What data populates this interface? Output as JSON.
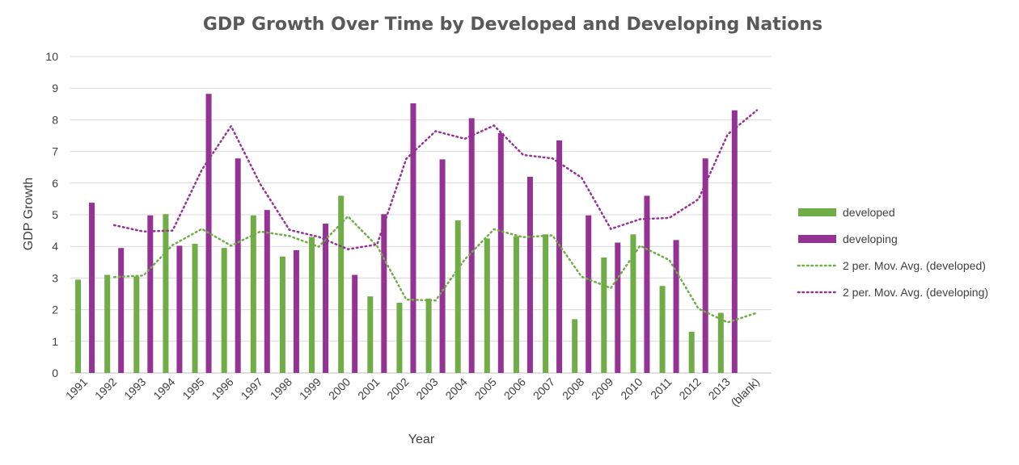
{
  "chart_data": {
    "type": "bar",
    "title": "GDP Growth Over Time by Developed and Developing Nations",
    "xlabel": "Year",
    "ylabel": "GDP Growth",
    "ylim": [
      0,
      10
    ],
    "yticks": [
      "0",
      "1",
      "2",
      "3",
      "4",
      "5",
      "6",
      "7",
      "8",
      "9",
      "10"
    ],
    "grid": "horizontal",
    "legend_position": "right",
    "categories": [
      "1991",
      "1992",
      "1993",
      "1994",
      "1995",
      "1996",
      "1997",
      "1998",
      "1999",
      "2000",
      "2001",
      "2002",
      "2003",
      "2004",
      "2005",
      "2006",
      "2007",
      "2008",
      "2009",
      "2010",
      "2011",
      "2012",
      "2013",
      "(blank)"
    ],
    "series": [
      {
        "name": "developed",
        "color": "#70ad47",
        "values": [
          2.95,
          3.1,
          3.05,
          5.02,
          4.08,
          3.95,
          4.98,
          3.68,
          4.3,
          5.6,
          2.42,
          2.22,
          2.35,
          4.82,
          4.25,
          4.32,
          4.38,
          1.7,
          3.65,
          4.38,
          2.75,
          1.3,
          1.9,
          null
        ]
      },
      {
        "name": "developing",
        "color": "#953395",
        "values": [
          5.38,
          3.95,
          4.98,
          4.02,
          8.82,
          6.78,
          5.15,
          3.88,
          4.72,
          3.1,
          5.02,
          8.52,
          6.75,
          8.05,
          7.58,
          6.2,
          7.35,
          4.98,
          4.12,
          5.6,
          4.2,
          6.78,
          8.3,
          null
        ]
      }
    ],
    "trendlines": [
      {
        "name": "2 per. Mov. Avg. (developed)",
        "color": "#70ad47",
        "style": "dotted",
        "values": [
          null,
          3.03,
          3.08,
          4.04,
          4.55,
          4.02,
          4.47,
          4.33,
          3.99,
          4.95,
          4.01,
          2.32,
          2.29,
          3.59,
          4.54,
          4.29,
          4.35,
          3.04,
          2.68,
          4.02,
          3.57,
          2.03,
          1.6,
          1.9
        ]
      },
      {
        "name": "2 per. Mov. Avg. (developing)",
        "color": "#953395",
        "style": "dotted",
        "values": [
          null,
          4.67,
          4.47,
          4.5,
          6.42,
          7.8,
          5.97,
          4.52,
          4.3,
          3.91,
          4.06,
          6.77,
          7.64,
          7.4,
          7.82,
          6.89,
          6.78,
          6.17,
          4.55,
          4.86,
          4.9,
          5.49,
          7.54,
          8.3
        ]
      }
    ]
  }
}
